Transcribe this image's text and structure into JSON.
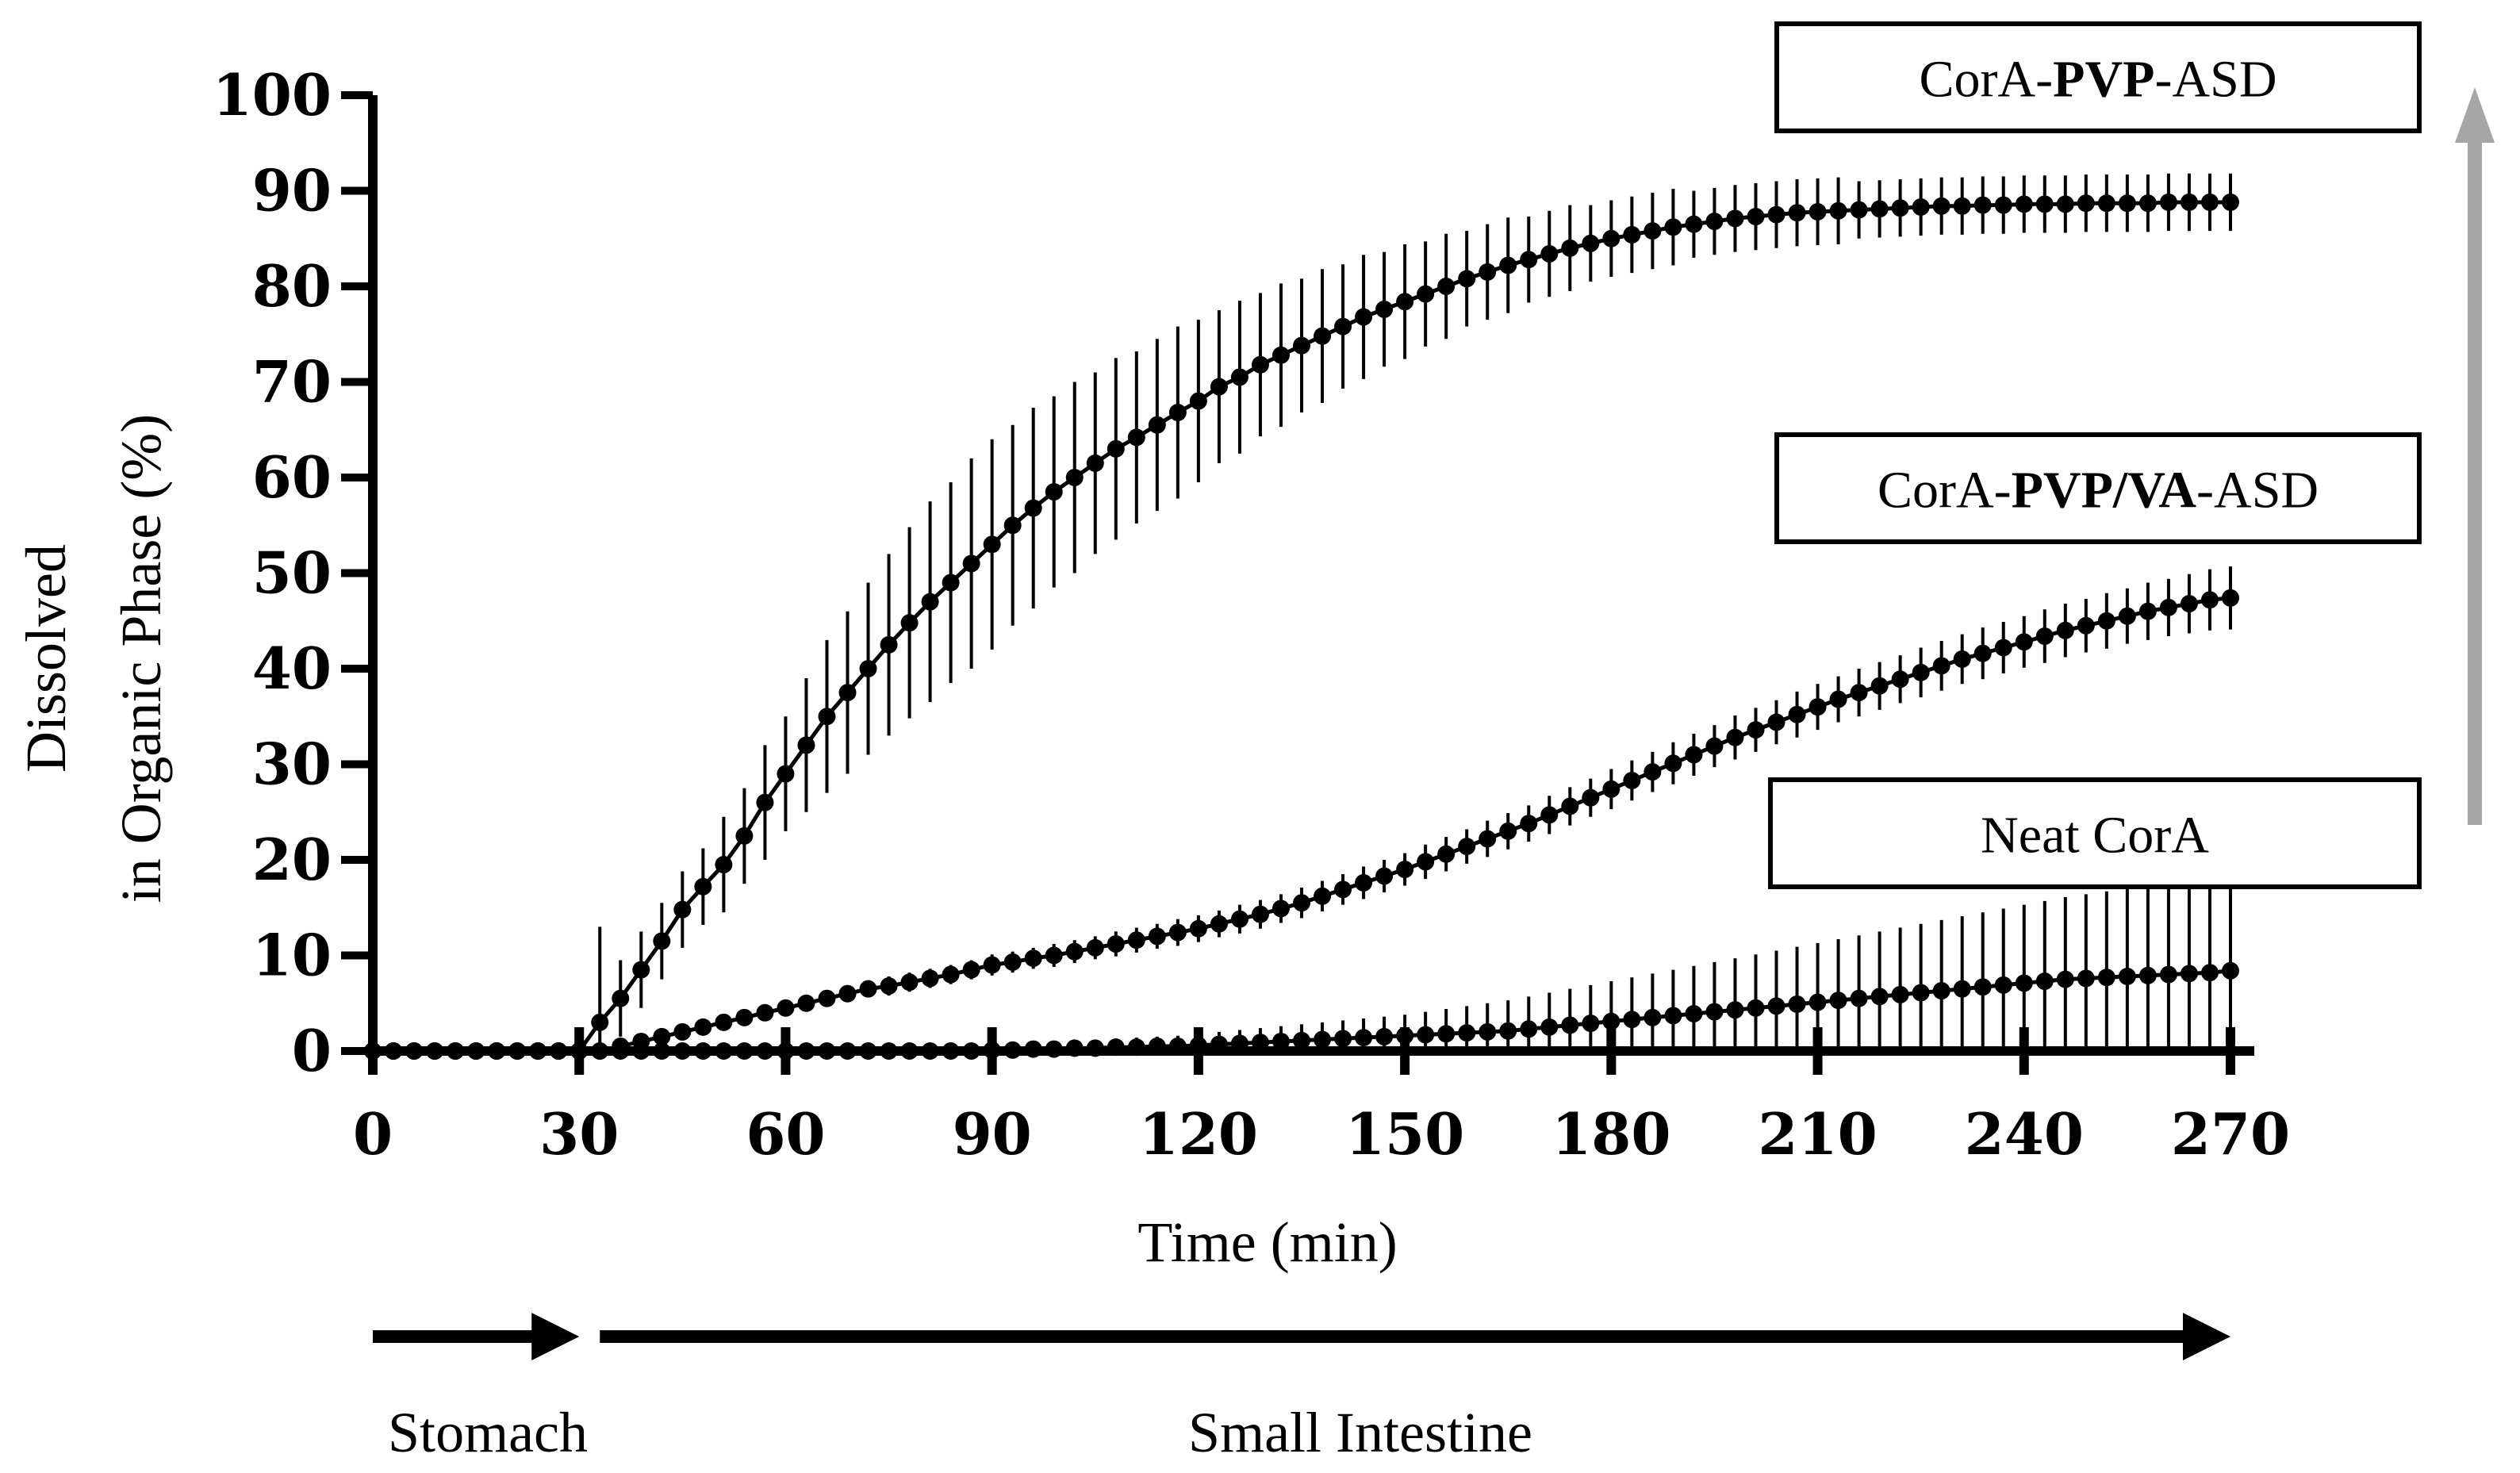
{
  "chart_data": {
    "type": "line",
    "title": "",
    "xlabel": "Time (min)",
    "ylabel_line1": "Dissolved",
    "ylabel_line2": "in Organic Phase (%)",
    "xlim": [
      0,
      270
    ],
    "ylim": [
      0,
      100
    ],
    "x_ticks": [
      0,
      30,
      60,
      90,
      120,
      150,
      180,
      210,
      240,
      270
    ],
    "y_ticks": [
      0,
      10,
      20,
      30,
      40,
      50,
      60,
      70,
      80,
      90,
      100
    ],
    "grid": false,
    "phases": [
      {
        "label": "Stomach",
        "start": 0,
        "end": 30
      },
      {
        "label": "Small Intestine",
        "start": 33,
        "end": 270
      }
    ],
    "series": [
      {
        "name": "CorA-PVP-ASD",
        "name_parts": [
          {
            "text": "CorA-",
            "bold": false
          },
          {
            "text": "PVP",
            "bold": true
          },
          {
            "text": "-ASD",
            "bold": false
          }
        ],
        "interval_min": 3,
        "x": [
          0,
          3,
          6,
          9,
          12,
          15,
          18,
          21,
          24,
          27,
          30,
          33,
          36,
          39,
          42,
          45,
          48,
          51,
          54,
          57,
          60,
          63,
          66,
          69,
          72,
          75,
          78,
          81,
          84,
          87,
          90,
          93,
          96,
          99,
          102,
          105,
          108,
          111,
          114,
          117,
          120,
          123,
          126,
          129,
          132,
          135,
          138,
          141,
          144,
          147,
          150,
          153,
          156,
          159,
          162,
          165,
          168,
          171,
          174,
          177,
          180,
          183,
          186,
          189,
          192,
          195,
          198,
          201,
          204,
          207,
          210,
          213,
          216,
          219,
          222,
          225,
          228,
          231,
          234,
          237,
          240,
          243,
          246,
          249,
          252,
          255,
          258,
          261,
          264,
          267,
          270
        ],
        "values": [
          0,
          0,
          0,
          0,
          0,
          0,
          0,
          0,
          0,
          0,
          0,
          3,
          5.5,
          8.5,
          11.5,
          14.8,
          17.2,
          19.5,
          22.5,
          26,
          29,
          32,
          35,
          37.5,
          40,
          42.5,
          44.8,
          47,
          49,
          51,
          53,
          55,
          56.8,
          58.5,
          60,
          61.5,
          63,
          64.2,
          65.5,
          66.8,
          68,
          69.5,
          70.5,
          71.8,
          72.8,
          73.8,
          74.8,
          75.8,
          76.8,
          77.6,
          78.4,
          79.2,
          80,
          80.8,
          81.5,
          82.2,
          82.8,
          83.4,
          84,
          84.5,
          85,
          85.4,
          85.8,
          86.2,
          86.5,
          86.8,
          87.1,
          87.3,
          87.5,
          87.7,
          87.8,
          87.9,
          88,
          88.1,
          88.2,
          88.3,
          88.4,
          88.4,
          88.5,
          88.5,
          88.6,
          88.6,
          88.6,
          88.7,
          88.7,
          88.7,
          88.7,
          88.8,
          88.8,
          88.8,
          88.8
        ],
        "error": [
          0,
          0,
          0,
          0,
          0,
          0,
          0,
          0,
          0,
          0,
          0,
          10,
          4,
          4,
          4,
          4,
          4,
          5,
          5,
          6,
          6,
          7,
          8,
          8.5,
          9,
          9.5,
          10,
          10.5,
          10.5,
          11,
          11,
          10.5,
          10.5,
          10,
          10,
          9.5,
          9.5,
          9,
          9,
          9,
          8.5,
          8,
          8,
          7.5,
          7.5,
          7,
          7,
          6.5,
          6.5,
          6,
          6,
          5.5,
          5.5,
          5,
          5,
          5,
          4.5,
          4.5,
          4.5,
          4,
          4,
          4,
          4,
          4,
          3.5,
          3.5,
          3.5,
          3.5,
          3.5,
          3.5,
          3.5,
          3.5,
          3,
          3,
          3,
          3,
          3,
          3,
          3,
          3,
          3,
          3,
          3,
          3,
          3,
          3,
          3,
          3,
          3,
          3,
          3
        ]
      },
      {
        "name": "CorA-PVP/VA-ASD",
        "name_parts": [
          {
            "text": "CorA-",
            "bold": false
          },
          {
            "text": "PVP/VA",
            "bold": true
          },
          {
            "text": "-ASD",
            "bold": false
          }
        ],
        "interval_min": 3,
        "x": [
          0,
          3,
          6,
          9,
          12,
          15,
          18,
          21,
          24,
          27,
          30,
          33,
          36,
          39,
          42,
          45,
          48,
          51,
          54,
          57,
          60,
          63,
          66,
          69,
          72,
          75,
          78,
          81,
          84,
          87,
          90,
          93,
          96,
          99,
          102,
          105,
          108,
          111,
          114,
          117,
          120,
          123,
          126,
          129,
          132,
          135,
          138,
          141,
          144,
          147,
          150,
          153,
          156,
          159,
          162,
          165,
          168,
          171,
          174,
          177,
          180,
          183,
          186,
          189,
          192,
          195,
          198,
          201,
          204,
          207,
          210,
          213,
          216,
          219,
          222,
          225,
          228,
          231,
          234,
          237,
          240,
          243,
          246,
          249,
          252,
          255,
          258,
          261,
          264,
          267,
          270
        ],
        "values": [
          0,
          0,
          0,
          0,
          0,
          0,
          0,
          0,
          0,
          0,
          0,
          0,
          0.5,
          1,
          1.5,
          2,
          2.5,
          3,
          3.5,
          4,
          4.5,
          5,
          5.5,
          6,
          6.5,
          6.8,
          7.2,
          7.6,
          8,
          8.5,
          9,
          9.3,
          9.7,
          10,
          10.4,
          10.8,
          11.2,
          11.6,
          12,
          12.4,
          12.8,
          13.3,
          13.8,
          14.3,
          14.9,
          15.5,
          16.2,
          16.9,
          17.6,
          18.3,
          19,
          19.8,
          20.6,
          21.4,
          22.2,
          23,
          23.8,
          24.7,
          25.6,
          26.5,
          27.4,
          28.3,
          29.2,
          30.1,
          31,
          31.9,
          32.8,
          33.6,
          34.4,
          35.2,
          36,
          36.8,
          37.5,
          38.2,
          38.9,
          39.6,
          40.3,
          41,
          41.6,
          42.2,
          42.8,
          43.4,
          44,
          44.5,
          45,
          45.5,
          46,
          46.4,
          46.8,
          47.2,
          47.4
        ],
        "error": [
          0,
          0,
          0,
          0,
          0,
          0,
          0,
          0,
          0,
          0,
          0,
          0,
          0.5,
          0.5,
          0.5,
          0.5,
          0.5,
          0.6,
          0.6,
          0.7,
          0.7,
          0.8,
          0.8,
          0.9,
          0.9,
          1,
          1,
          1,
          1,
          1,
          1.1,
          1.1,
          1.1,
          1.2,
          1.2,
          1.2,
          1.3,
          1.3,
          1.3,
          1.4,
          1.4,
          1.4,
          1.5,
          1.5,
          1.5,
          1.6,
          1.6,
          1.6,
          1.7,
          1.7,
          1.7,
          1.8,
          1.8,
          1.8,
          1.9,
          1.9,
          1.9,
          2,
          2,
          2,
          2.1,
          2.1,
          2.1,
          2.2,
          2.2,
          2.2,
          2.3,
          2.3,
          2.3,
          2.4,
          2.4,
          2.4,
          2.5,
          2.5,
          2.5,
          2.6,
          2.6,
          2.6,
          2.7,
          2.7,
          2.7,
          2.8,
          2.8,
          2.8,
          2.9,
          2.9,
          3,
          3,
          3.1,
          3.2,
          3.3
        ]
      },
      {
        "name": "Neat CorA",
        "name_parts": [
          {
            "text": "Neat CorA",
            "bold": false
          }
        ],
        "interval_min": 3,
        "x": [
          0,
          3,
          6,
          9,
          12,
          15,
          18,
          21,
          24,
          27,
          30,
          33,
          36,
          39,
          42,
          45,
          48,
          51,
          54,
          57,
          60,
          63,
          66,
          69,
          72,
          75,
          78,
          81,
          84,
          87,
          90,
          93,
          96,
          99,
          102,
          105,
          108,
          111,
          114,
          117,
          120,
          123,
          126,
          129,
          132,
          135,
          138,
          141,
          144,
          147,
          150,
          153,
          156,
          159,
          162,
          165,
          168,
          171,
          174,
          177,
          180,
          183,
          186,
          189,
          192,
          195,
          198,
          201,
          204,
          207,
          210,
          213,
          216,
          219,
          222,
          225,
          228,
          231,
          234,
          237,
          240,
          243,
          246,
          249,
          252,
          255,
          258,
          261,
          264,
          267,
          270
        ],
        "values": [
          0,
          0,
          0,
          0,
          0,
          0,
          0,
          0,
          0,
          0,
          0,
          0,
          0,
          0,
          0,
          0,
          0,
          0,
          0,
          0,
          0,
          0,
          0,
          0,
          0,
          0,
          0,
          0,
          0,
          0,
          0.1,
          0.1,
          0.2,
          0.2,
          0.3,
          0.3,
          0.4,
          0.4,
          0.5,
          0.5,
          0.6,
          0.7,
          0.8,
          0.9,
          1,
          1.1,
          1.2,
          1.3,
          1.4,
          1.5,
          1.6,
          1.7,
          1.8,
          1.9,
          2,
          2.1,
          2.3,
          2.5,
          2.7,
          2.9,
          3.1,
          3.3,
          3.5,
          3.7,
          3.9,
          4.1,
          4.3,
          4.5,
          4.7,
          4.9,
          5.1,
          5.3,
          5.5,
          5.7,
          5.9,
          6.1,
          6.3,
          6.5,
          6.7,
          6.9,
          7.1,
          7.3,
          7.5,
          7.6,
          7.7,
          7.8,
          7.9,
          8,
          8.1,
          8.2,
          8.4
        ],
        "error": [
          0,
          0,
          0,
          0,
          0,
          0,
          0,
          0,
          0,
          0,
          0,
          0,
          0,
          0,
          0,
          0,
          0,
          0,
          0,
          0,
          0,
          0,
          0,
          0,
          0,
          0,
          0,
          0,
          0,
          0,
          0.3,
          0.4,
          0.5,
          0.6,
          0.7,
          0.8,
          0.9,
          1,
          1,
          1.1,
          1.2,
          1.3,
          1.4,
          1.5,
          1.6,
          1.7,
          1.8,
          1.9,
          2,
          2.1,
          2.2,
          2.4,
          2.6,
          2.8,
          3,
          3.2,
          3.4,
          3.6,
          3.8,
          4,
          4.2,
          4.4,
          4.6,
          4.8,
          5,
          5.2,
          5.4,
          5.6,
          5.8,
          6,
          6.2,
          6.4,
          6.6,
          6.8,
          7,
          7.2,
          7.4,
          7.6,
          7.8,
          8,
          8.2,
          8.4,
          8.6,
          8.8,
          9,
          9.2,
          9.4,
          9.6,
          9.8,
          10,
          10.2
        ]
      }
    ]
  }
}
